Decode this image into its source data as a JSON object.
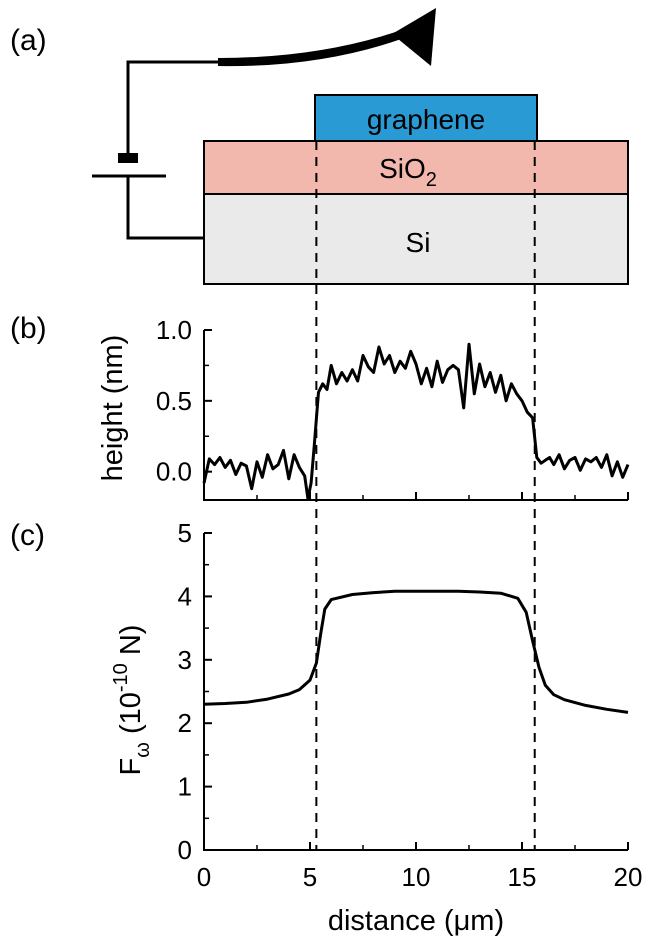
{
  "panels": {
    "a": "(a)",
    "b": "(b)",
    "c": "(c)"
  },
  "schematic": {
    "layers": [
      {
        "name": "graphene",
        "label": "graphene",
        "color": "#2a9ad4"
      },
      {
        "name": "sio2",
        "label": "SiO",
        "subscript": "2",
        "color": "#f2b8ae"
      },
      {
        "name": "si",
        "label": "Si",
        "color": "#eaeaea"
      }
    ]
  },
  "chart_data": [
    {
      "panel": "(b)",
      "type": "line",
      "xlabel": "",
      "ylabel": "height (nm)",
      "xlim": [
        0,
        20
      ],
      "ylim": [
        -0.2,
        1.0
      ],
      "yticks": [
        0.0,
        0.5,
        1.0
      ],
      "ytick_labels": [
        "0.0",
        "0.5",
        "1.0"
      ],
      "series": [
        {
          "x": [
            0,
            0.25,
            0.5,
            0.75,
            1,
            1.25,
            1.5,
            1.75,
            2,
            2.25,
            2.5,
            2.75,
            3,
            3.25,
            3.5,
            3.75,
            4,
            4.25,
            4.5,
            4.75,
            4.9,
            5.05,
            5.2,
            5.4,
            5.6,
            5.8,
            6,
            6.25,
            6.5,
            6.75,
            7,
            7.25,
            7.5,
            7.75,
            8,
            8.25,
            8.5,
            8.75,
            9,
            9.25,
            9.5,
            9.75,
            10,
            10.25,
            10.5,
            10.75,
            11,
            11.25,
            11.5,
            11.75,
            12,
            12.25,
            12.5,
            12.75,
            13,
            13.25,
            13.5,
            13.75,
            14,
            14.25,
            14.5,
            14.75,
            15,
            15.25,
            15.5,
            15.7,
            15.9,
            16.1,
            16.3,
            16.5,
            16.75,
            17,
            17.25,
            17.5,
            17.75,
            18,
            18.25,
            18.5,
            18.75,
            19,
            19.25,
            19.5,
            19.75,
            20
          ],
          "y": [
            -0.08,
            0.09,
            0.05,
            0.1,
            0.03,
            0.08,
            -0.02,
            0.06,
            0.04,
            -0.12,
            0.07,
            -0.04,
            0.12,
            0.02,
            0.05,
            0.15,
            -0.05,
            0.12,
            0.03,
            -0.03,
            -0.19,
            -0.08,
            0.18,
            0.56,
            0.62,
            0.58,
            0.75,
            0.62,
            0.7,
            0.64,
            0.72,
            0.64,
            0.82,
            0.74,
            0.7,
            0.88,
            0.76,
            0.82,
            0.7,
            0.78,
            0.73,
            0.85,
            0.76,
            0.62,
            0.73,
            0.6,
            0.78,
            0.63,
            0.72,
            0.75,
            0.72,
            0.45,
            0.9,
            0.55,
            0.76,
            0.6,
            0.7,
            0.56,
            0.68,
            0.5,
            0.62,
            0.55,
            0.5,
            0.42,
            0.38,
            0.1,
            0.06,
            0.08,
            0.1,
            0.05,
            0.12,
            0.02,
            0.08,
            0.1,
            0.01,
            0.09,
            0.07,
            0.1,
            0.03,
            0.12,
            -0.03,
            0.07,
            -0.04,
            0.05
          ]
        }
      ]
    },
    {
      "panel": "(c)",
      "type": "line",
      "xlabel": "distance (μm)",
      "ylabel": "F",
      "ylabel_sub": "ω",
      "ylabel_unit": "(10",
      "ylabel_exp": "-10",
      "ylabel_tail": " N)",
      "xlim": [
        0,
        20
      ],
      "ylim": [
        0,
        5
      ],
      "xticks": [
        0,
        5,
        10,
        15,
        20
      ],
      "xtick_labels": [
        "0",
        "5",
        "10",
        "15",
        "20"
      ],
      "yticks": [
        0,
        1,
        2,
        3,
        4,
        5
      ],
      "ytick_labels": [
        "0",
        "1",
        "2",
        "3",
        "4",
        "5"
      ],
      "series": [
        {
          "x": [
            0,
            1,
            2,
            3,
            4,
            4.5,
            5,
            5.3,
            5.5,
            5.7,
            6,
            7,
            8,
            9,
            10,
            11,
            12,
            13,
            14,
            14.8,
            15.2,
            15.5,
            15.8,
            16.1,
            16.5,
            17,
            18,
            19,
            20
          ],
          "y": [
            2.3,
            2.31,
            2.33,
            2.38,
            2.46,
            2.53,
            2.68,
            2.95,
            3.4,
            3.8,
            3.95,
            4.03,
            4.06,
            4.08,
            4.08,
            4.08,
            4.08,
            4.07,
            4.05,
            3.97,
            3.75,
            3.3,
            2.88,
            2.6,
            2.45,
            2.37,
            2.28,
            2.22,
            2.17
          ]
        }
      ],
      "markers": {
        "dashed_x": [
          5.3,
          15.6
        ]
      }
    }
  ]
}
